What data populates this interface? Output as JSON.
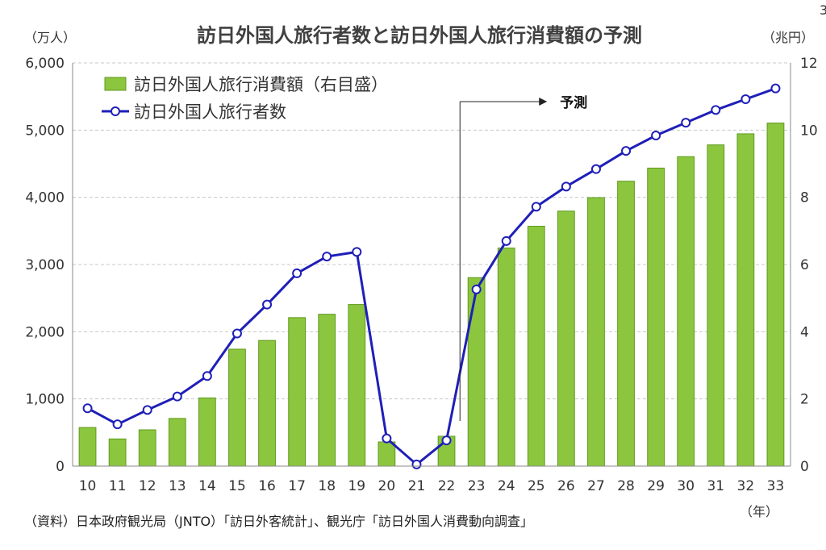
{
  "page_number": "3",
  "chart_data": {
    "type": "bar",
    "title": "訪日外国人旅行者数と訪日外国人旅行消費額の予測",
    "left_unit": "（万人）",
    "right_unit": "（兆円）",
    "x_unit": "（年）",
    "categories": [
      "10",
      "11",
      "12",
      "13",
      "14",
      "15",
      "16",
      "17",
      "18",
      "19",
      "20",
      "21",
      "22",
      "23",
      "24",
      "25",
      "26",
      "27",
      "28",
      "29",
      "30",
      "31",
      "32",
      "33"
    ],
    "left_axis": {
      "ylim": [
        0,
        6000
      ],
      "ticks": [
        "0",
        "1,000",
        "2,000",
        "3,000",
        "4,000",
        "5,000",
        "6,000"
      ]
    },
    "right_axis": {
      "ylim": [
        0,
        12
      ],
      "ticks": [
        "0",
        "2",
        "4",
        "6",
        "8",
        "10",
        "12"
      ]
    },
    "grid": true,
    "legend_position": "top-left",
    "series": [
      {
        "name": "訪日外国人旅行消費額（右目盛）",
        "kind": "bar",
        "axis": "right",
        "color": "#8cc63f",
        "values": [
          1.15,
          0.81,
          1.08,
          1.42,
          2.03,
          3.48,
          3.74,
          4.42,
          4.52,
          4.81,
          0.72,
          0.0,
          0.89,
          5.61,
          6.49,
          7.14,
          7.59,
          7.99,
          8.48,
          8.87,
          9.21,
          9.56,
          9.89,
          10.21
        ]
      },
      {
        "name": "訪日外国人旅行者数",
        "kind": "line",
        "axis": "left",
        "color": "#1f1fb8",
        "values": [
          861,
          622,
          836,
          1036,
          1341,
          1974,
          2404,
          2869,
          3119,
          3188,
          412,
          25,
          383,
          2630,
          3350,
          3860,
          4160,
          4420,
          4690,
          4920,
          5110,
          5300,
          5460,
          5620
        ]
      }
    ],
    "annotations": [
      {
        "text": "予測",
        "at_category": "22"
      }
    ],
    "source": "（資料）日本政府観光局（JNTO）「訪日外客統計」、観光庁「訪日外国人消費動向調査」"
  }
}
